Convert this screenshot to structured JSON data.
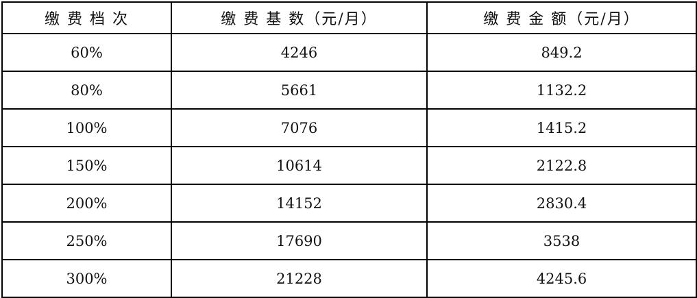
{
  "table": {
    "headers": [
      "缴 费 档 次",
      "缴 费 基 数（元/月）",
      "缴 费 金 额（元/月）"
    ],
    "rows": [
      [
        "60%",
        "4246",
        "849.2"
      ],
      [
        "80%",
        "5661",
        "1132.2"
      ],
      [
        "100%",
        "7076",
        "1415.2"
      ],
      [
        "150%",
        "10614",
        "2122.8"
      ],
      [
        "200%",
        "14152",
        "2830.4"
      ],
      [
        "250%",
        "17690",
        "3538"
      ],
      [
        "300%",
        "21228",
        "4245.6"
      ]
    ]
  }
}
